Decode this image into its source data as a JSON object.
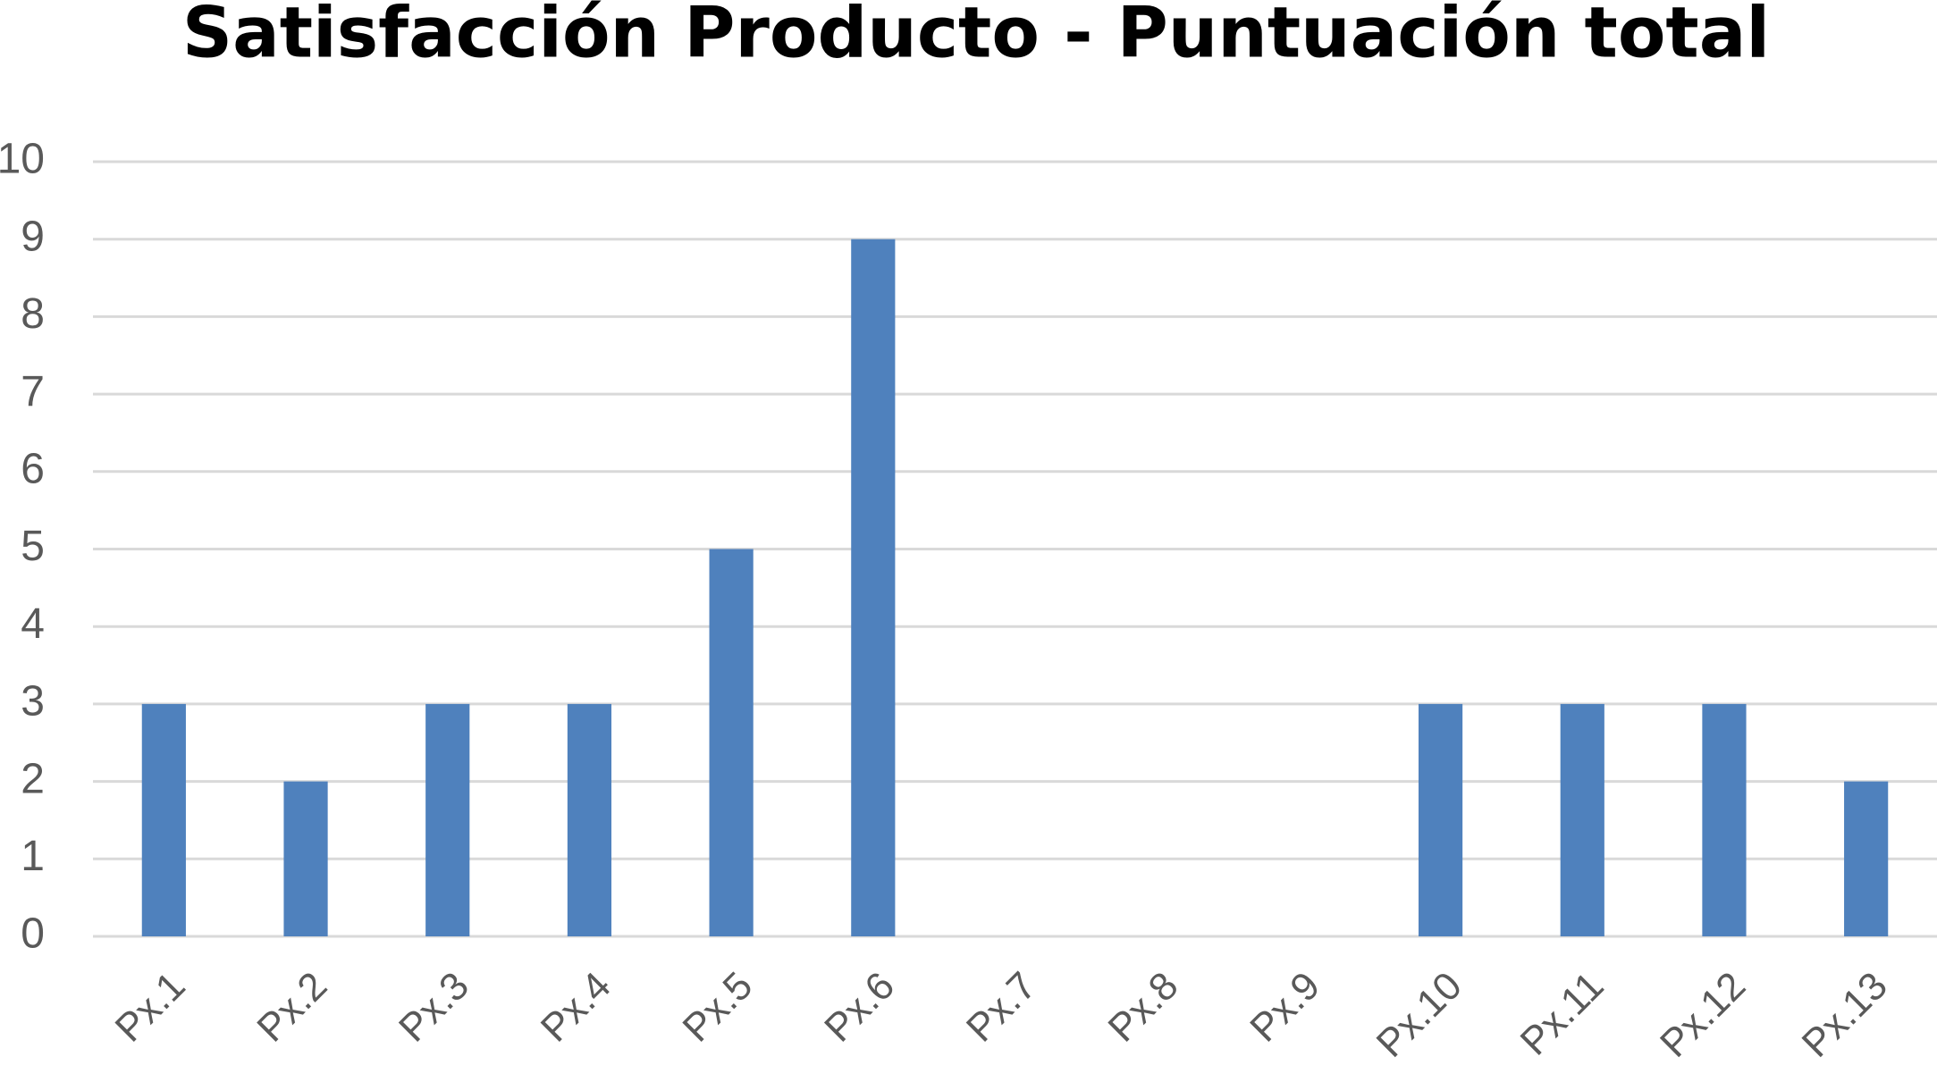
{
  "chart_data": {
    "type": "bar",
    "title": "Satisfacción Producto - Puntuación total",
    "categories": [
      "Px.1",
      "Px.2",
      "Px.3",
      "Px.4",
      "Px.5",
      "Px.6",
      "Px.7",
      "Px.8",
      "Px.9",
      "Px.10",
      "Px.11",
      "Px.12",
      "Px.13"
    ],
    "values": [
      3,
      2,
      3,
      3,
      5,
      9,
      0,
      0,
      0,
      3,
      3,
      3,
      2
    ],
    "color": "#4f81bd",
    "ylim": [
      0,
      10
    ],
    "yticks": [
      0,
      1,
      2,
      3,
      4,
      5,
      6,
      7,
      8,
      9,
      10
    ],
    "grid": true
  }
}
